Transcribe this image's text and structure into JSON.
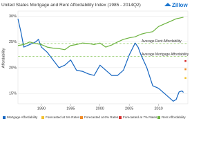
{
  "chart_data": {
    "type": "line",
    "title": "United States Mortgage and Rent Affordability Index (1985 - 2014Q2)",
    "logo": "Zillow",
    "y_label": "Affordability",
    "xlim": [
      1986,
      2015
    ],
    "xticks": [
      1990,
      1995,
      2000,
      2005,
      2010
    ],
    "ylim": [
      13,
      31
    ],
    "yticks": [
      {
        "value": 15,
        "label": "15%"
      },
      {
        "value": 20,
        "label": "20%"
      },
      {
        "value": 25,
        "label": "25%"
      },
      {
        "value": 30,
        "label": "30%"
      }
    ],
    "grid": true,
    "reference_lines": [
      {
        "label": "Average Rent Affordability",
        "value": 24.7,
        "color": "#7cc04b"
      },
      {
        "label": "Average Mortgage Affordability",
        "value": 22.2,
        "color": "#7cc04b"
      }
    ],
    "series": [
      {
        "name": "Mortgage Affordability",
        "color": "#1565c0",
        "style": "line",
        "x": [
          1986,
          1986.5,
          1987,
          1988,
          1989,
          1989.5,
          1990,
          1991,
          1992,
          1993,
          1994,
          1995,
          1996,
          1997,
          1998,
          1999,
          2000,
          2001,
          2002,
          2003,
          2004,
          2005,
          2006,
          2006.5,
          2007,
          2008,
          2009,
          2010,
          2011,
          2012,
          2012.5,
          2013,
          2013.5,
          2014,
          2014.25
        ],
        "values": [
          29.5,
          27,
          24,
          24.5,
          25,
          25.5,
          24,
          23,
          21.5,
          20,
          20.5,
          21.5,
          19.5,
          19.3,
          18.8,
          18.5,
          20.5,
          19.5,
          18.5,
          18.5,
          19.5,
          22.5,
          24.8,
          24,
          22.5,
          20,
          16.5,
          16,
          15,
          14,
          13.5,
          13.8,
          15.3,
          15.5,
          15.2
        ]
      },
      {
        "name": "Forecasted at 5% Rates",
        "color": "#f2c12e",
        "style": "point",
        "x": [
          2014.6
        ],
        "values": [
          18
        ]
      },
      {
        "name": "Forecasted at 6% Rates",
        "color": "#f08a24",
        "style": "point",
        "x": [
          2014.6
        ],
        "values": [
          19.7
        ]
      },
      {
        "name": "Forecasted at 7% Rates",
        "color": "#d62b2b",
        "style": "point",
        "x": [
          2014.6
        ],
        "values": [
          21.3
        ]
      },
      {
        "name": "Rent Affordability",
        "color": "#6cb33f",
        "style": "line",
        "x": [
          1986,
          1987,
          1988,
          1989,
          1990,
          1991,
          1992,
          1993,
          1994,
          1995,
          1996,
          1997,
          1998,
          1999,
          2000,
          2001,
          2002,
          2003,
          2004,
          2005,
          2006,
          2007,
          2008,
          2009,
          2010,
          2011,
          2012,
          2013,
          2014.25
        ],
        "values": [
          24.3,
          24.5,
          25,
          24.7,
          24.5,
          24,
          23.8,
          23.7,
          23.5,
          24.3,
          24.5,
          24.8,
          24.7,
          24.5,
          24.8,
          24,
          24.4,
          25,
          25.5,
          25.8,
          26,
          26.5,
          26.8,
          27,
          28,
          28.5,
          29,
          29.5,
          29.8
        ]
      }
    ]
  }
}
